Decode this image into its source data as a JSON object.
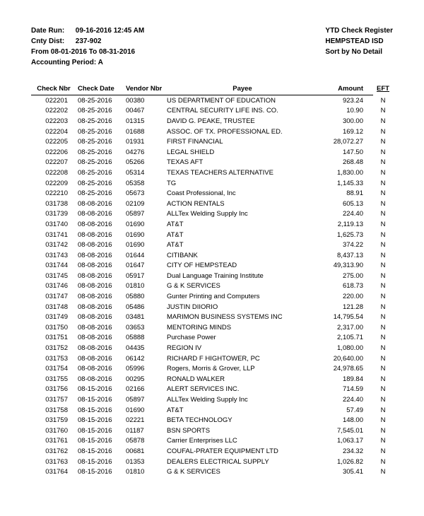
{
  "header": {
    "left": {
      "date_run_label": "Date Run:",
      "date_run_value": "09-16-2016 12:45 AM",
      "cnty_dist_label": "Cnty Dist:",
      "cnty_dist_value": "237-902",
      "from_line": "From 08-01-2016 To 08-31-2016",
      "acct_period_label": "Accounting Period: A"
    },
    "right": {
      "line1": "YTD Check Register",
      "line2": "HEMPSTEAD ISD",
      "line3": "Sort by No Detail"
    }
  },
  "columns": {
    "check_nbr": "Check Nbr",
    "check_date": "Check Date",
    "vendor_nbr": "Vendor Nbr",
    "payee": "Payee",
    "amount": "Amount",
    "eft": "EFT"
  },
  "rows": [
    {
      "check": "022201",
      "date": "08-25-2016",
      "vendor": "00380",
      "payee": "US DEPARTMENT OF EDUCATION",
      "amount": "923.24",
      "eft": "N"
    },
    {
      "check": "022202",
      "date": "08-25-2016",
      "vendor": "00467",
      "payee": "CENTRAL SECURITY LIFE INS. CO.",
      "amount": "10.90",
      "eft": "N"
    },
    {
      "check": "022203",
      "date": "08-25-2016",
      "vendor": "01315",
      "payee": "DAVID G. PEAKE, TRUSTEE",
      "amount": "300.00",
      "eft": "N"
    },
    {
      "check": "022204",
      "date": "08-25-2016",
      "vendor": "01688",
      "payee": "ASSOC. OF TX. PROFESSIONAL ED.",
      "amount": "169.12",
      "eft": "N"
    },
    {
      "check": "022205",
      "date": "08-25-2016",
      "vendor": "01931",
      "payee": "FIRST FINANCIAL",
      "amount": "28,072.27",
      "eft": "N"
    },
    {
      "check": "022206",
      "date": "08-25-2016",
      "vendor": "04276",
      "payee": "LEGAL SHIELD",
      "amount": "147.50",
      "eft": "N"
    },
    {
      "check": "022207",
      "date": "08-25-2016",
      "vendor": "05266",
      "payee": "TEXAS AFT",
      "amount": "268.48",
      "eft": "N"
    },
    {
      "check": "022208",
      "date": "08-25-2016",
      "vendor": "05314",
      "payee": "TEXAS TEACHERS ALTERNATIVE",
      "amount": "1,830.00",
      "eft": "N"
    },
    {
      "check": "022209",
      "date": "08-25-2016",
      "vendor": "05358",
      "payee": "TG",
      "amount": "1,145.33",
      "eft": "N"
    },
    {
      "check": "022210",
      "date": "08-25-2016",
      "vendor": "05673",
      "payee": "Coast Professional, Inc",
      "amount": "88.91",
      "eft": "N"
    },
    {
      "check": "031738",
      "date": "08-08-2016",
      "vendor": "02109",
      "payee": "ACTION RENTALS",
      "amount": "605.13",
      "eft": "N"
    },
    {
      "check": "031739",
      "date": "08-08-2016",
      "vendor": "05897",
      "payee": "ALLTex Welding Supply Inc",
      "amount": "224.40",
      "eft": "N"
    },
    {
      "check": "031740",
      "date": "08-08-2016",
      "vendor": "01690",
      "payee": "AT&T",
      "amount": "2,119.13",
      "eft": "N"
    },
    {
      "check": "031741",
      "date": "08-08-2016",
      "vendor": "01690",
      "payee": "AT&T",
      "amount": "1,625.73",
      "eft": "N"
    },
    {
      "check": "031742",
      "date": "08-08-2016",
      "vendor": "01690",
      "payee": "AT&T",
      "amount": "374.22",
      "eft": "N"
    },
    {
      "check": "031743",
      "date": "08-08-2016",
      "vendor": "01644",
      "payee": "CITIBANK",
      "amount": "8,437.13",
      "eft": "N"
    },
    {
      "check": "031744",
      "date": "08-08-2016",
      "vendor": "01647",
      "payee": "CITY OF HEMPSTEAD",
      "amount": "49,313.90",
      "eft": "N"
    },
    {
      "check": "031745",
      "date": "08-08-2016",
      "vendor": "05917",
      "payee": "Dual Language Training Institute",
      "amount": "275.00",
      "eft": "N"
    },
    {
      "check": "031746",
      "date": "08-08-2016",
      "vendor": "01810",
      "payee": "G & K SERVICES",
      "amount": "618.73",
      "eft": "N"
    },
    {
      "check": "031747",
      "date": "08-08-2016",
      "vendor": "05880",
      "payee": "Gunter Printing and Computers",
      "amount": "220.00",
      "eft": "N"
    },
    {
      "check": "031748",
      "date": "08-08-2016",
      "vendor": "05486",
      "payee": "JUSTIN DIIORIO",
      "amount": "121.28",
      "eft": "N"
    },
    {
      "check": "031749",
      "date": "08-08-2016",
      "vendor": "03481",
      "payee": "MARIMON BUSINESS SYSTEMS INC",
      "amount": "14,795.54",
      "eft": "N"
    },
    {
      "check": "031750",
      "date": "08-08-2016",
      "vendor": "03653",
      "payee": "MENTORING MINDS",
      "amount": "2,317.00",
      "eft": "N"
    },
    {
      "check": "031751",
      "date": "08-08-2016",
      "vendor": "05888",
      "payee": "Purchase Power",
      "amount": "2,105.71",
      "eft": "N"
    },
    {
      "check": "031752",
      "date": "08-08-2016",
      "vendor": "04435",
      "payee": "REGION IV",
      "amount": "1,080.00",
      "eft": "N"
    },
    {
      "check": "031753",
      "date": "08-08-2016",
      "vendor": "06142",
      "payee": "RICHARD F HIGHTOWER, PC",
      "amount": "20,640.00",
      "eft": "N"
    },
    {
      "check": "031754",
      "date": "08-08-2016",
      "vendor": "05996",
      "payee": "Rogers, Morris & Grover, LLP",
      "amount": "24,978.65",
      "eft": "N"
    },
    {
      "check": "031755",
      "date": "08-08-2016",
      "vendor": "00295",
      "payee": "RONALD WALKER",
      "amount": "189.84",
      "eft": "N"
    },
    {
      "check": "031756",
      "date": "08-15-2016",
      "vendor": "02166",
      "payee": "ALERT SERVICES INC.",
      "amount": "714.59",
      "eft": "N"
    },
    {
      "check": "031757",
      "date": "08-15-2016",
      "vendor": "05897",
      "payee": "ALLTex Welding Supply Inc",
      "amount": "224.40",
      "eft": "N"
    },
    {
      "check": "031758",
      "date": "08-15-2016",
      "vendor": "01690",
      "payee": "AT&T",
      "amount": "57.49",
      "eft": "N"
    },
    {
      "check": "031759",
      "date": "08-15-2016",
      "vendor": "02221",
      "payee": "BETA TECHNOLOGY",
      "amount": "148.00",
      "eft": "N"
    },
    {
      "check": "031760",
      "date": "08-15-2016",
      "vendor": "01187",
      "payee": "BSN SPORTS",
      "amount": "7,545.01",
      "eft": "N"
    },
    {
      "check": "031761",
      "date": "08-15-2016",
      "vendor": "05878",
      "payee": "Carrier Enterprises LLC",
      "amount": "1,063.17",
      "eft": "N"
    },
    {
      "check": "031762",
      "date": "08-15-2016",
      "vendor": "00681",
      "payee": "COUFAL-PRATER EQUIPMENT LTD",
      "amount": "234.32",
      "eft": "N"
    },
    {
      "check": "031763",
      "date": "08-15-2016",
      "vendor": "01353",
      "payee": "DEALERS ELECTRICAL SUPPLY",
      "amount": "1,026.82",
      "eft": "N"
    },
    {
      "check": "031764",
      "date": "08-15-2016",
      "vendor": "01810",
      "payee": "G & K SERVICES",
      "amount": "305.41",
      "eft": "N"
    }
  ]
}
